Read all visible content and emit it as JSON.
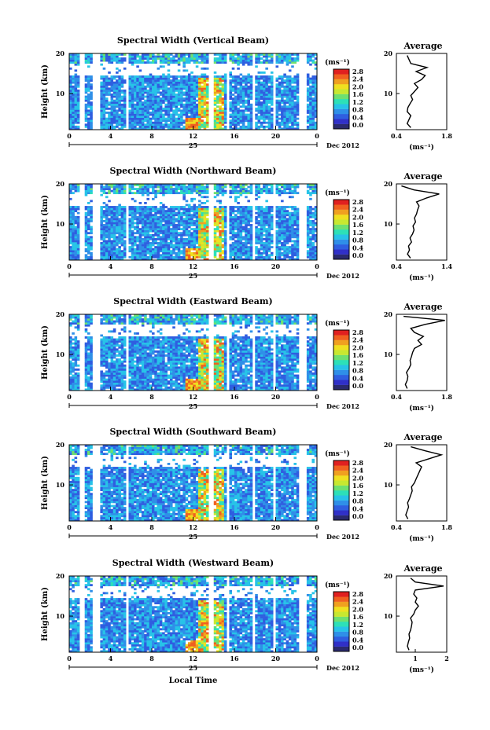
{
  "figure": {
    "date_label": "Dec 2012",
    "day_label": "25",
    "x_axis_label": "Local Time",
    "y_axis_label": "Height (km)",
    "colorbar_unit": "(ms⁻¹)",
    "colorbar_ticks": [
      "0.0",
      "0.4",
      "0.8",
      "1.2",
      "1.6",
      "2.0",
      "2.4",
      "2.8"
    ],
    "colorbar_colors": [
      "#2a2a6e",
      "#3030c8",
      "#2f5ee0",
      "#2f8fe8",
      "#27c3e8",
      "#2de0b8",
      "#6ee070",
      "#c8e830",
      "#f0e020",
      "#f0a020",
      "#f06020",
      "#e02020"
    ],
    "avg_title": "Average",
    "avg_unit": "(ms⁻¹)"
  },
  "chart_data": [
    {
      "type": "heatmap",
      "title": "Spectral Width (Vertical Beam)",
      "xlabel": "",
      "ylabel": "Height (km)",
      "x_ticks": [
        "0",
        "4",
        "8",
        "12",
        "16",
        "20",
        "0"
      ],
      "y_ticks": [
        "10",
        "20"
      ],
      "xlim": [
        0,
        24
      ],
      "ylim": [
        1,
        20
      ],
      "average_profile": {
        "xlim": [
          0.4,
          1.8
        ],
        "x_ticks": [
          "0.4",
          "1.8"
        ],
        "y_ticks": [
          "10",
          "20"
        ],
        "heights": [
          1.5,
          2.5,
          3.5,
          4.5,
          5.5,
          6.5,
          7.5,
          8.5,
          9.5,
          10.5,
          11.5,
          12.5,
          13.5,
          14.5,
          15.5,
          16.5,
          17.5,
          18.5,
          19.5
        ],
        "values": [
          0.8,
          0.7,
          0.75,
          0.8,
          0.7,
          0.72,
          0.78,
          0.85,
          0.8,
          0.9,
          1.0,
          0.9,
          1.1,
          1.2,
          0.95,
          1.25,
          0.8,
          0.75,
          0.7
        ]
      }
    },
    {
      "type": "heatmap",
      "title": "Spectral Width (Northward Beam)",
      "xlabel": "",
      "ylabel": "Height (km)",
      "x_ticks": [
        "0",
        "4",
        "8",
        "12",
        "16",
        "20",
        "0"
      ],
      "y_ticks": [
        "10",
        "20"
      ],
      "xlim": [
        0,
        24
      ],
      "ylim": [
        1,
        20
      ],
      "average_profile": {
        "xlim": [
          0.4,
          1.4
        ],
        "x_ticks": [
          "0.4",
          "1.4"
        ],
        "y_ticks": [
          "10",
          "20"
        ],
        "heights": [
          1.5,
          2.5,
          3.5,
          4.5,
          5.5,
          6.5,
          7.5,
          8.5,
          9.5,
          10.5,
          11.5,
          12.5,
          13.5,
          14.5,
          15.5,
          16.5,
          17.5,
          18.5,
          19.5
        ],
        "values": [
          0.68,
          0.62,
          0.66,
          0.64,
          0.7,
          0.67,
          0.72,
          0.75,
          0.73,
          0.78,
          0.76,
          0.8,
          0.82,
          0.85,
          0.8,
          1.0,
          1.25,
          0.75,
          0.5
        ]
      }
    },
    {
      "type": "heatmap",
      "title": "Spectral Width (Eastward Beam)",
      "xlabel": "",
      "ylabel": "Height (km)",
      "x_ticks": [
        "0",
        "4",
        "8",
        "12",
        "16",
        "20",
        "0"
      ],
      "y_ticks": [
        "10",
        "20"
      ],
      "xlim": [
        0,
        24
      ],
      "ylim": [
        1,
        20
      ],
      "average_profile": {
        "xlim": [
          0.4,
          1.8
        ],
        "x_ticks": [
          "0.4",
          "1.8"
        ],
        "y_ticks": [
          "10",
          "20"
        ],
        "heights": [
          1.5,
          2.5,
          3.5,
          4.5,
          5.5,
          6.5,
          7.5,
          8.5,
          9.5,
          10.5,
          11.5,
          12.5,
          13.5,
          14.5,
          15.5,
          16.5,
          17.5,
          18.5,
          19.5
        ],
        "values": [
          0.7,
          0.65,
          0.7,
          0.72,
          0.68,
          0.75,
          0.8,
          0.78,
          0.82,
          0.85,
          0.9,
          1.1,
          1.0,
          1.15,
          0.9,
          0.8,
          1.2,
          1.75,
          0.6
        ]
      }
    },
    {
      "type": "heatmap",
      "title": "Spectral Width (Southward Beam)",
      "xlabel": "",
      "ylabel": "Height (km)",
      "x_ticks": [
        "0",
        "4",
        "8",
        "12",
        "16",
        "20",
        "0"
      ],
      "y_ticks": [
        "10",
        "20"
      ],
      "xlim": [
        0,
        24
      ],
      "ylim": [
        1,
        20
      ],
      "average_profile": {
        "xlim": [
          0.4,
          1.8
        ],
        "x_ticks": [
          "0.4",
          "1.8"
        ],
        "y_ticks": [
          "10",
          "20"
        ],
        "heights": [
          1.5,
          2.5,
          3.5,
          4.5,
          5.5,
          6.5,
          7.5,
          8.5,
          9.5,
          10.5,
          11.5,
          12.5,
          13.5,
          14.5,
          15.5,
          16.5,
          17.5,
          18.5,
          19.5
        ],
        "values": [
          0.72,
          0.66,
          0.7,
          0.74,
          0.71,
          0.76,
          0.8,
          0.84,
          0.82,
          0.9,
          0.95,
          1.0,
          1.05,
          1.1,
          0.95,
          1.3,
          1.65,
          1.2,
          0.8
        ]
      }
    },
    {
      "type": "heatmap",
      "title": "Spectral Width (Westward Beam)",
      "xlabel": "Local Time",
      "ylabel": "Height (km)",
      "x_ticks": [
        "0",
        "4",
        "8",
        "12",
        "16",
        "20",
        "0"
      ],
      "y_ticks": [
        "10",
        "20"
      ],
      "xlim": [
        0,
        24
      ],
      "ylim": [
        1,
        20
      ],
      "average_profile": {
        "xlim": [
          0.4,
          2
        ],
        "x_ticks": [
          "1",
          "2"
        ],
        "y_ticks": [
          "10",
          "20"
        ],
        "heights": [
          1.5,
          2.5,
          3.5,
          4.5,
          5.5,
          6.5,
          7.5,
          8.5,
          9.5,
          10.5,
          11.5,
          12.5,
          13.5,
          14.5,
          15.5,
          16.5,
          17.5,
          18.5,
          19.5
        ],
        "values": [
          0.8,
          0.75,
          0.78,
          0.82,
          0.8,
          0.85,
          0.88,
          0.9,
          0.85,
          0.95,
          1.0,
          1.1,
          1.0,
          1.05,
          0.95,
          1.0,
          1.9,
          1.0,
          0.85
        ]
      }
    }
  ]
}
